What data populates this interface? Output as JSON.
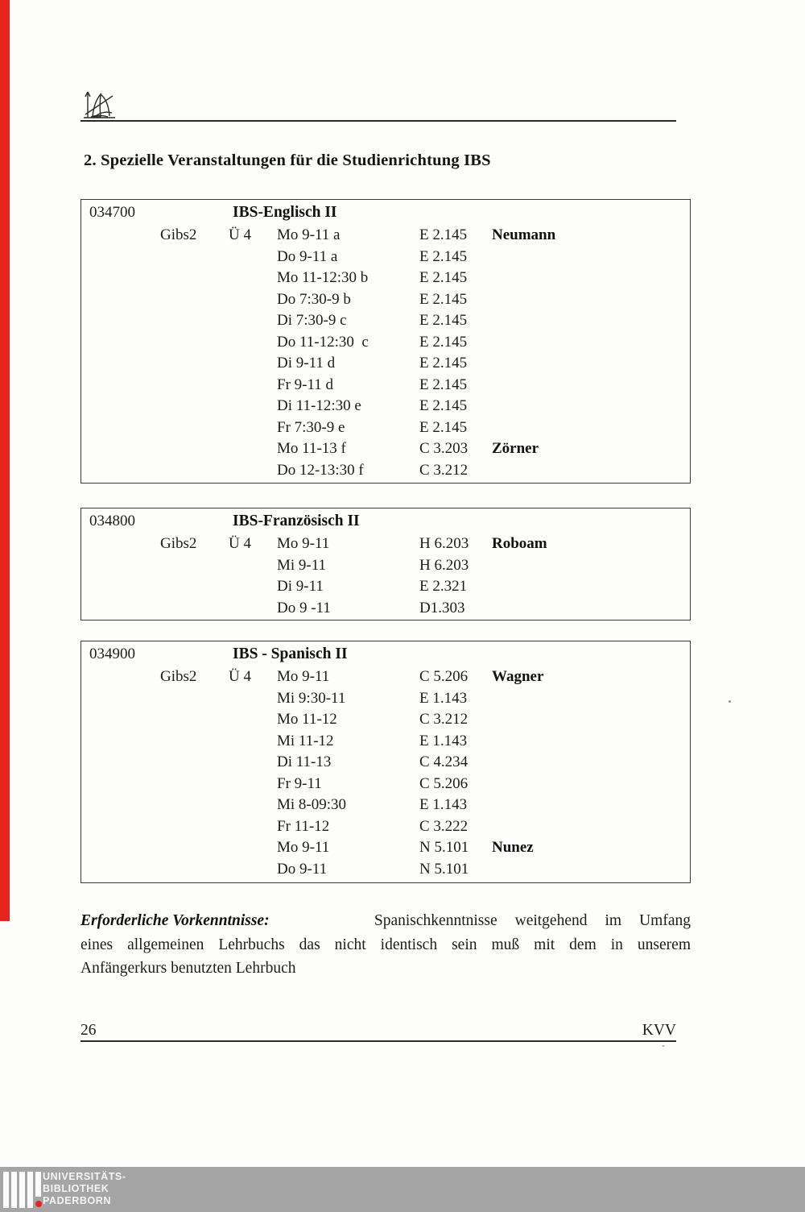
{
  "page": {
    "heading": "2. Spezielle Veranstaltungen für die Studienrichtung IBS",
    "page_number": "26",
    "footer_right": "KVV"
  },
  "courses": [
    {
      "number": "034700",
      "title": "IBS-Englisch II",
      "group": "Gibs2",
      "type": "Ü 4",
      "sessions": [
        {
          "time": "Mo 9-11 a",
          "room": "E 2.145",
          "lecturer": "Neumann"
        },
        {
          "time": "Do 9-11 a",
          "room": "E 2.145",
          "lecturer": ""
        },
        {
          "time": "Mo 11-12:30 b",
          "room": "E 2.145",
          "lecturer": ""
        },
        {
          "time": "Do 7:30-9 b",
          "room": "E 2.145",
          "lecturer": ""
        },
        {
          "time": "Di 7:30-9 c",
          "room": "E 2.145",
          "lecturer": ""
        },
        {
          "time": "Do 11-12:30  c",
          "room": "E 2.145",
          "lecturer": ""
        },
        {
          "time": "Di 9-11 d",
          "room": "E 2.145",
          "lecturer": ""
        },
        {
          "time": "Fr 9-11 d",
          "room": "E 2.145",
          "lecturer": ""
        },
        {
          "time": "Di 11-12:30 e",
          "room": "E 2.145",
          "lecturer": ""
        },
        {
          "time": "Fr 7:30-9 e",
          "room": "E 2.145",
          "lecturer": ""
        },
        {
          "time": "Mo 11-13 f",
          "room": "C 3.203",
          "lecturer": "Zörner"
        },
        {
          "time": "Do 12-13:30 f",
          "room": "C 3.212",
          "lecturer": ""
        }
      ]
    },
    {
      "number": "034800",
      "title": "IBS-Französisch II",
      "group": "Gibs2",
      "type": "Ü 4",
      "sessions": [
        {
          "time": "Mo 9-11",
          "room": "H 6.203",
          "lecturer": "Roboam"
        },
        {
          "time": "Mi 9-11",
          "room": "H 6.203",
          "lecturer": ""
        },
        {
          "time": "Di 9-11",
          "room": "E 2.321",
          "lecturer": ""
        },
        {
          "time": "Do 9 -11",
          "room": "D1.303",
          "lecturer": ""
        }
      ]
    },
    {
      "number": "034900",
      "title": "IBS - Spanisch II",
      "group": "Gibs2",
      "type": "Ü 4",
      "sessions": [
        {
          "time": "Mo 9-11",
          "room": "C 5.206",
          "lecturer": "Wagner"
        },
        {
          "time": "Mi 9:30-11",
          "room": "E 1.143",
          "lecturer": ""
        },
        {
          "time": "Mo 11-12",
          "room": "C 3.212",
          "lecturer": ""
        },
        {
          "time": "Mi 11-12",
          "room": "E 1.143",
          "lecturer": ""
        },
        {
          "time": "Di 11-13",
          "room": "C 4.234",
          "lecturer": ""
        },
        {
          "time": "Fr 9-11",
          "room": "C 5.206",
          "lecturer": ""
        },
        {
          "time": "Mi 8-09:30",
          "room": "E 1.143",
          "lecturer": ""
        },
        {
          "time": "Fr 11-12",
          "room": "C 3.222",
          "lecturer": ""
        },
        {
          "time": "Mo 9-11",
          "room": "N 5.101",
          "lecturer": "Nunez"
        },
        {
          "time": "Do 9-11",
          "room": "N 5.101",
          "lecturer": ""
        }
      ]
    }
  ],
  "note": {
    "lead": "Erforderliche Vorkenntnisse:",
    "line1_words": [
      "Spanischkenntnisse",
      "weitgehend",
      "im",
      "Umfang"
    ],
    "line2": "eines allgemeinen Lehrbuchs das nicht identisch sein muß mit dem in unserem",
    "line3": "Anfängerkurs benutzten Lehrbuch"
  },
  "library_banner": {
    "lines": [
      "UNIVERSITÄTS-",
      "BIBLIOTHEK",
      "PADERBORN"
    ]
  },
  "colors": {
    "stripe_red": "#e8251d",
    "banner_gray": "#a5a5a5",
    "dot_red": "#e8251d"
  }
}
